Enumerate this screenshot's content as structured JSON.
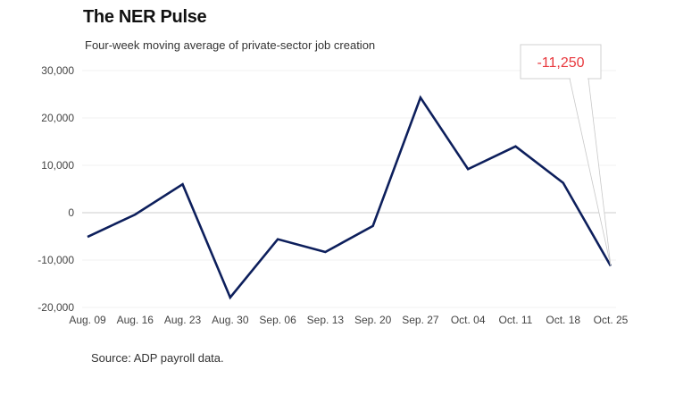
{
  "title": "The NER Pulse",
  "subtitle": "Four-week moving average of private-sector job creation",
  "source": "Source: ADP payroll data.",
  "chart_data": {
    "type": "line",
    "title": "The NER Pulse",
    "subtitle": "Four-week moving average of private-sector job creation",
    "xlabel": "",
    "ylabel": "",
    "ylim": [
      -20000,
      30000
    ],
    "yticks": [
      30000,
      20000,
      10000,
      0,
      -10000,
      -20000
    ],
    "ytick_labels": [
      "30,000",
      "20,000",
      "10,000",
      "0",
      "-10,000",
      "-20,000"
    ],
    "grid": true,
    "categories": [
      "Aug. 09",
      "Aug. 16",
      "Aug. 23",
      "Aug. 30",
      "Sep. 06",
      "Sep. 13",
      "Sep. 20",
      "Sep. 27",
      "Oct. 04",
      "Oct. 11",
      "Oct. 18",
      "Oct. 25"
    ],
    "series": [
      {
        "name": "Four-week moving average",
        "color": "#0d1f5c",
        "values": [
          -5100,
          -400,
          6000,
          -17900,
          -5600,
          -8300,
          -2800,
          24300,
          9200,
          14000,
          6300,
          -11250
        ]
      }
    ],
    "annotation": {
      "label": "-11,250",
      "category": "Oct. 25",
      "value": -11250,
      "color": "#e8383d"
    }
  }
}
